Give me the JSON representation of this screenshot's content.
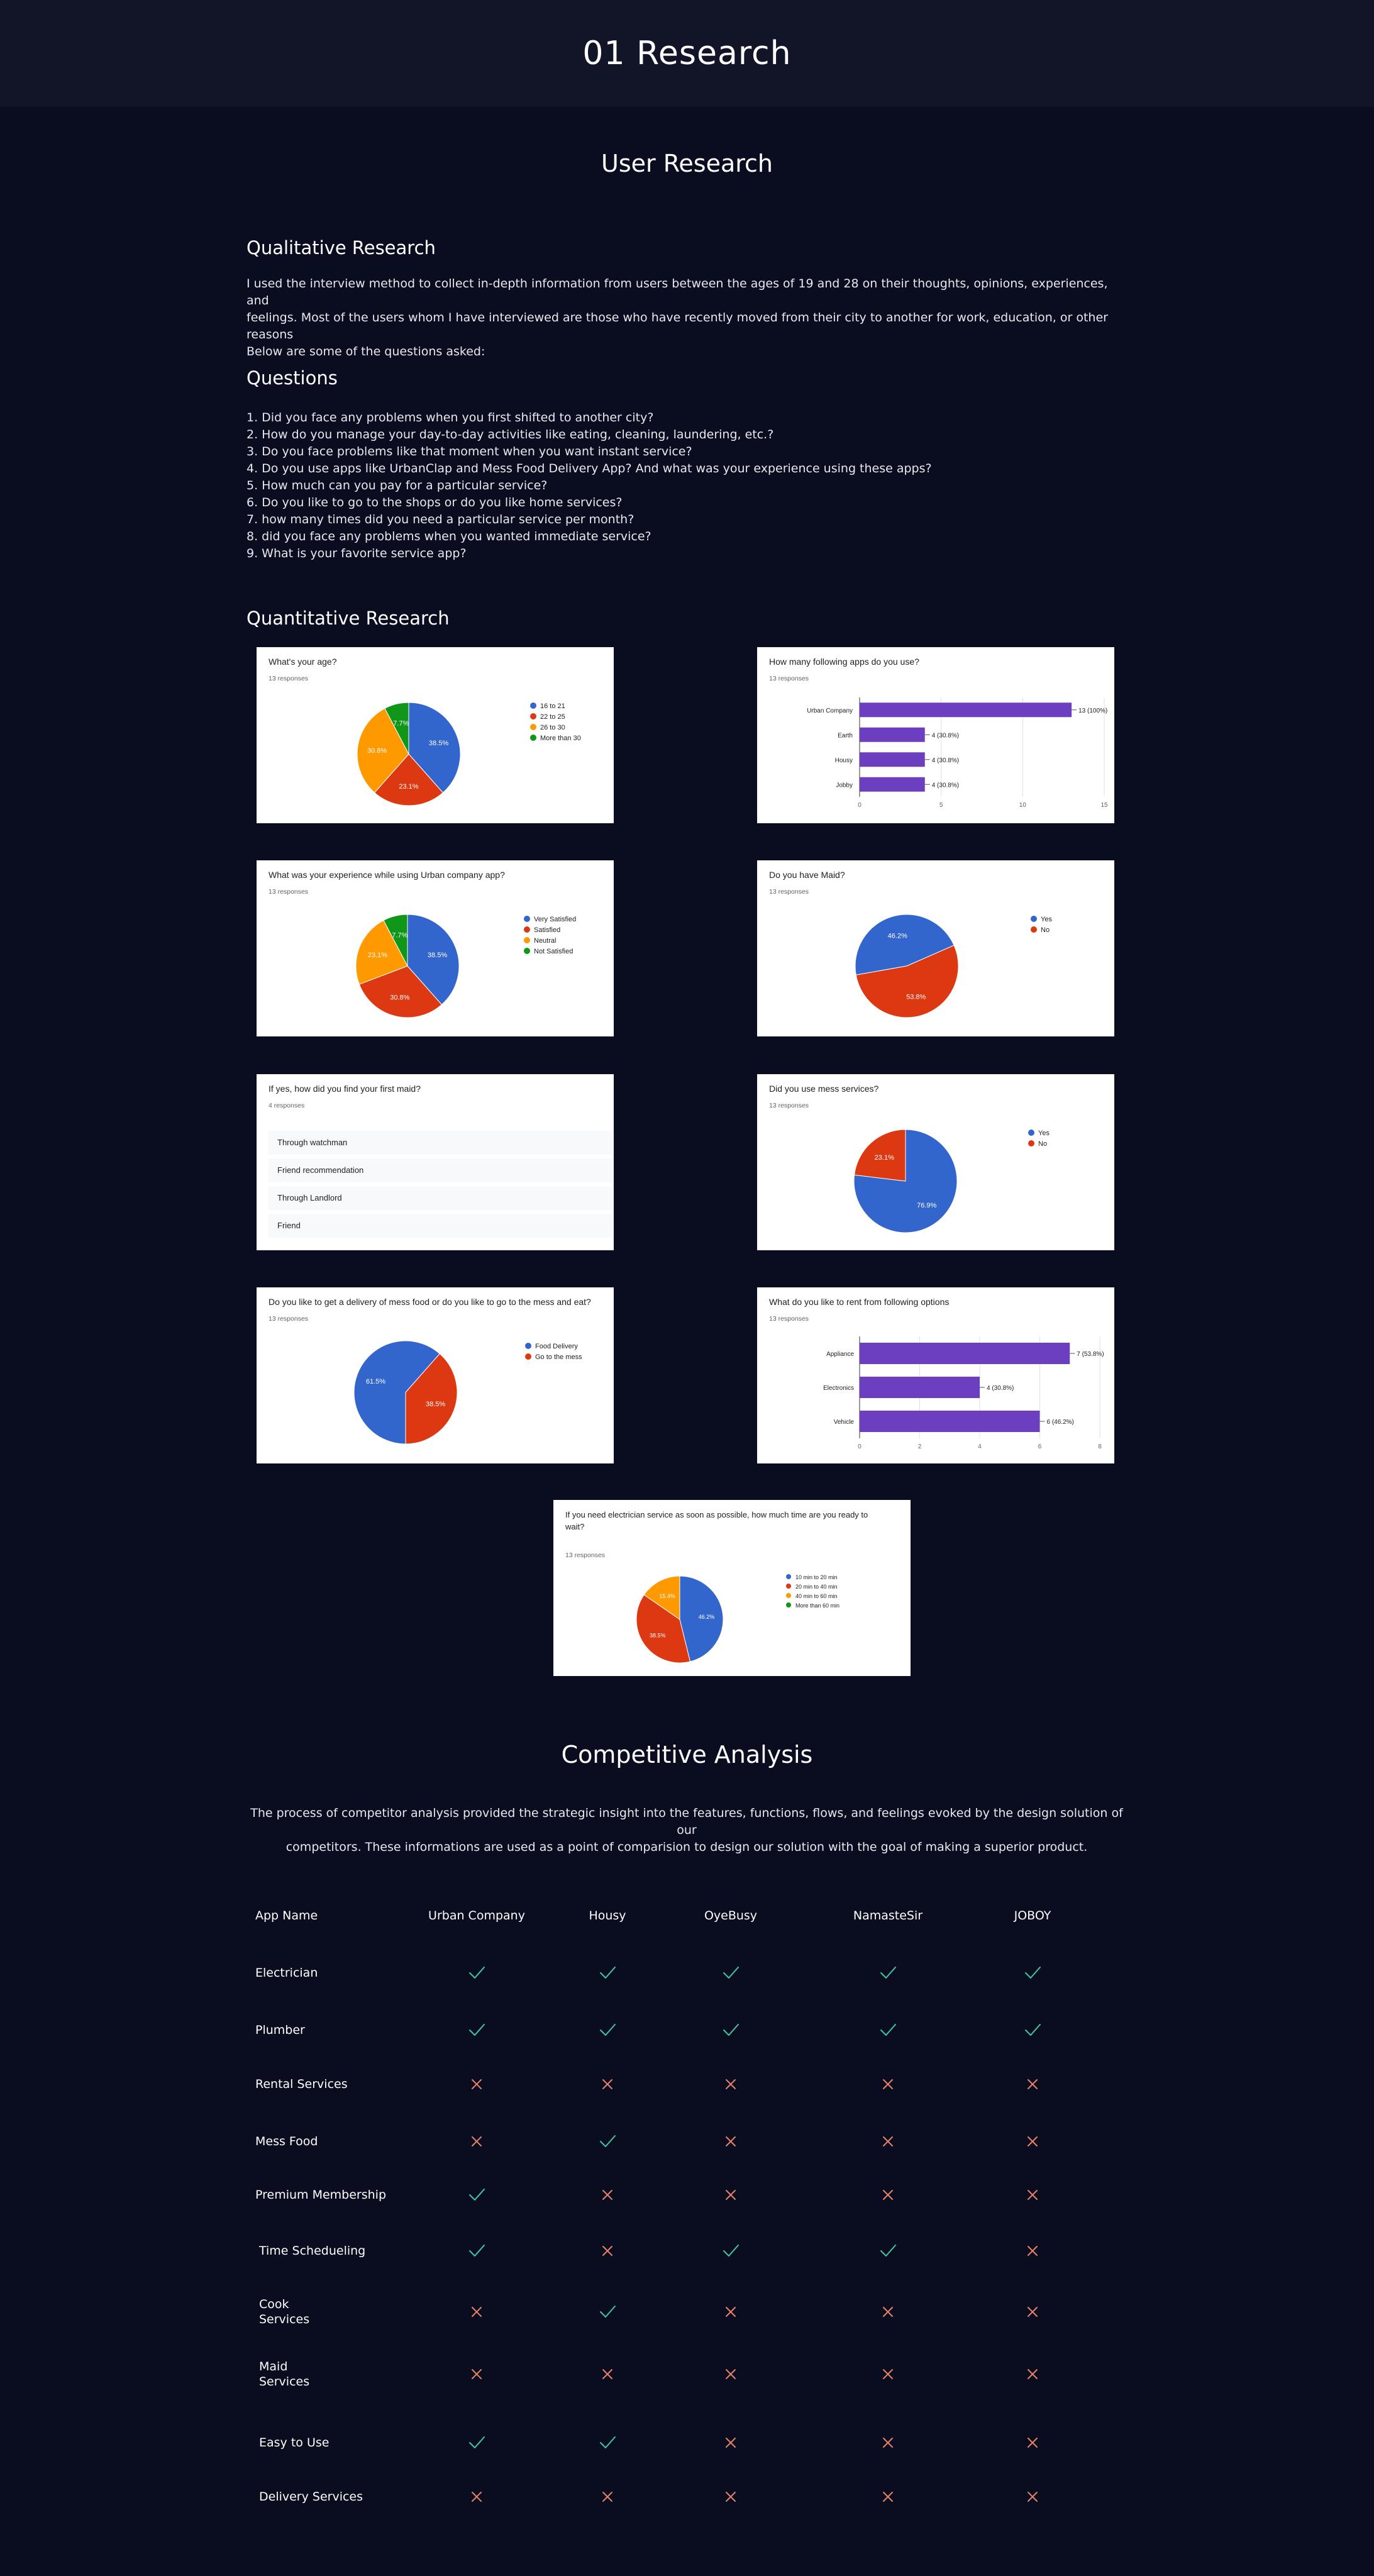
{
  "header": {
    "title": "01 Research"
  },
  "user_research": {
    "title": "User Research"
  },
  "qualitative": {
    "title": "Qualitative Research",
    "body_lines": [
      "I used the interview method to collect in-depth information from users between the ages of 19 and 28 on their thoughts, opinions, experiences, and",
      "feelings. Most of the users whom I have interviewed are those who have recently moved from their city to another for work, education, or other reasons",
      "Below are some of the questions asked:"
    ]
  },
  "questions": {
    "title": "Questions",
    "items": [
      "1. Did you face any problems when you first shifted to another city?",
      "2. How do you manage your day-to-day activities like eating, cleaning, laundering, etc.?",
      "3. Do you face problems like that moment when you want instant service?",
      "4. Do you use apps like UrbanClap and Mess Food Delivery App? And what was your experience using these apps?",
      "5. How much can you pay for a particular service?",
      "6. Do you like to go to the shops or do you like home services?",
      "7. how many times did you need a particular service per month?",
      "8. did you face any problems when you wanted immediate service?",
      "9. What is your favorite service app?"
    ]
  },
  "quantitative": {
    "title": "Quantitative Research"
  },
  "cards": {
    "age": {
      "question": "What's your age?",
      "responses": "13 responses"
    },
    "apps": {
      "question": "How many following apps do you use?",
      "responses": "13 responses"
    },
    "experience": {
      "question": "What was your experience while using Urban company app?",
      "responses": "13 responses"
    },
    "maid": {
      "question": "Do you have Maid?",
      "responses": "13 responses"
    },
    "find_maid": {
      "question": "If yes, how did you find your first maid?",
      "responses": "4 responses",
      "options": [
        "Through watchman",
        "Friend recommendation",
        "Through Landlord",
        "Friend"
      ]
    },
    "mess": {
      "question": "Did you use mess services?",
      "responses": "13 responses"
    },
    "delivery": {
      "question": "Do you like to get a delivery of mess food or do you like to go to the mess and eat?",
      "responses": "13 responses"
    },
    "rent": {
      "question": "What do you like to rent from following options",
      "responses": "13 responses"
    },
    "electrician": {
      "question_l1": "If you need electrician service as soon as possible, how much time are you ready to",
      "question_l2": "wait?",
      "responses": "13 responses"
    }
  },
  "chart_data": [
    {
      "id": "age",
      "type": "pie",
      "categories": [
        "16 to 21",
        "22 to 25",
        "26 to 30",
        "More than 30"
      ],
      "values": [
        38.5,
        23.1,
        30.8,
        7.7
      ],
      "colors": [
        "#3366cc",
        "#dc3912",
        "#ff9900",
        "#109618"
      ],
      "labels": [
        "38.5%",
        "23.1%",
        "30.8%",
        "7.7%"
      ]
    },
    {
      "id": "apps",
      "type": "bar",
      "categories": [
        "Urban Company",
        "Earth",
        "Housy",
        "Jobby"
      ],
      "values": [
        13,
        4,
        4,
        4
      ],
      "labels": [
        "13 (100%)",
        "4 (30.8%)",
        "4 (30.8%)",
        "4 (30.8%)"
      ],
      "xticks": [
        "0",
        "5",
        "10",
        "15"
      ],
      "xlim": [
        0,
        15
      ]
    },
    {
      "id": "experience",
      "type": "pie",
      "categories": [
        "Very Satisfied",
        "Satisfied",
        "Neutral",
        "Not Satisfied"
      ],
      "values": [
        38.5,
        30.8,
        23.1,
        7.7
      ],
      "colors": [
        "#3366cc",
        "#dc3912",
        "#ff9900",
        "#109618"
      ],
      "labels": [
        "38.5%",
        "30.8%",
        "23.1%",
        "7.7%"
      ]
    },
    {
      "id": "maid",
      "type": "pie",
      "categories": [
        "Yes",
        "No"
      ],
      "values": [
        46.2,
        53.8
      ],
      "colors": [
        "#3366cc",
        "#dc3912"
      ],
      "labels": [
        "46.2%",
        "53.8%"
      ]
    },
    {
      "id": "mess",
      "type": "pie",
      "categories": [
        "Yes",
        "No"
      ],
      "values": [
        76.9,
        23.1
      ],
      "colors": [
        "#3366cc",
        "#dc3912"
      ],
      "labels": [
        "76.9%",
        "23.1%"
      ]
    },
    {
      "id": "delivery",
      "type": "pie",
      "categories": [
        "Food Delivery",
        "Go to the mess"
      ],
      "values": [
        61.5,
        38.5
      ],
      "colors": [
        "#3366cc",
        "#dc3912"
      ],
      "labels": [
        "61.5%",
        "38.5%"
      ]
    },
    {
      "id": "rent",
      "type": "bar",
      "categories": [
        "Appliance",
        "Electronics",
        "Vehicle"
      ],
      "values": [
        7,
        4,
        6
      ],
      "labels": [
        "7 (53.8%)",
        "4 (30.8%)",
        "6 (46.2%)"
      ],
      "xticks": [
        "0",
        "2",
        "4",
        "6",
        "8"
      ],
      "xlim": [
        0,
        8
      ]
    },
    {
      "id": "electrician",
      "type": "pie",
      "categories": [
        "10 min to 20 min",
        "20 min to 40 min",
        "40 min to 60 min",
        "More than 60 min"
      ],
      "values": [
        46.2,
        38.5,
        15.4,
        0
      ],
      "colors": [
        "#3366cc",
        "#dc3912",
        "#ff9900",
        "#109618"
      ],
      "labels": [
        "46.2%",
        "38.5%",
        "15.4%",
        ""
      ]
    }
  ],
  "competitive": {
    "title": "Competitive Analysis",
    "body_lines": [
      "The process of competitor analysis provided the strategic insight into the features, functions, flows, and feelings evoked by the design solution of our",
      "competitors. These informations are used as a point of comparision to design our solution with the goal of making a superior product."
    ],
    "headers": [
      "App Name",
      "Urban Company",
      "Housy",
      "OyeBusy",
      "NamasteSir",
      "JOBOY"
    ],
    "rows": [
      {
        "label": [
          "Electrician"
        ],
        "marks": [
          1,
          1,
          1,
          1,
          1
        ]
      },
      {
        "label": [
          "Plumber"
        ],
        "marks": [
          1,
          1,
          1,
          1,
          1
        ]
      },
      {
        "label": [
          "Rental Services"
        ],
        "marks": [
          0,
          0,
          0,
          0,
          0
        ]
      },
      {
        "label": [
          "Mess Food"
        ],
        "marks": [
          0,
          1,
          0,
          0,
          0
        ]
      },
      {
        "label": [
          "Premium Membership"
        ],
        "marks": [
          1,
          0,
          0,
          0,
          0
        ]
      },
      {
        "label": [
          "Time Schedueling"
        ],
        "marks": [
          1,
          0,
          1,
          1,
          0
        ]
      },
      {
        "label": [
          "Cook",
          "Services"
        ],
        "marks": [
          0,
          1,
          0,
          0,
          0
        ]
      },
      {
        "label": [
          "Maid",
          "Services"
        ],
        "marks": [
          0,
          0,
          0,
          0,
          0
        ]
      },
      {
        "label": [
          "Easy to Use"
        ],
        "marks": [
          1,
          1,
          0,
          0,
          0
        ]
      },
      {
        "label": [
          "Delivery Services"
        ],
        "marks": [
          0,
          0,
          0,
          0,
          0
        ]
      }
    ],
    "check_color": "#3fc8a0",
    "cross_color": "#e8826a"
  }
}
